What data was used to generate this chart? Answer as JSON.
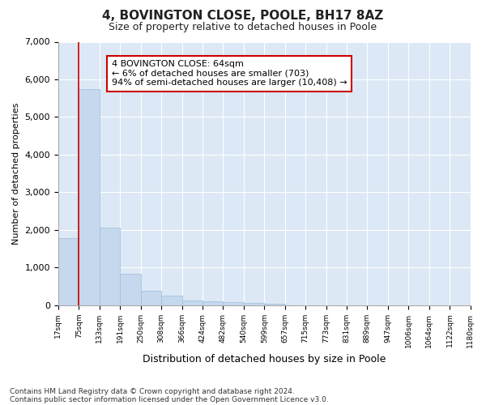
{
  "title": "4, BOVINGTON CLOSE, POOLE, BH17 8AZ",
  "subtitle": "Size of property relative to detached houses in Poole",
  "xlabel": "Distribution of detached houses by size in Poole",
  "ylabel": "Number of detached properties",
  "bar_color": "#c5d8ee",
  "bar_edge_color": "#9bbdd8",
  "plot_bg_color": "#dce8f5",
  "fig_bg_color": "#ffffff",
  "annotation_box_text": "4 BOVINGTON CLOSE: 64sqm\n← 6% of detached houses are smaller (703)\n94% of semi-detached houses are larger (10,408) →",
  "annotation_box_color": "#cc0000",
  "annotation_box_bg": "#ffffff",
  "vline_color": "#cc0000",
  "bin_edges": [
    17,
    75,
    133,
    191,
    250,
    308,
    366,
    424,
    482,
    540,
    599,
    657,
    715,
    773,
    831,
    889,
    947,
    1006,
    1064,
    1122,
    1180
  ],
  "bin_labels": [
    "17sqm",
    "75sqm",
    "133sqm",
    "191sqm",
    "250sqm",
    "308sqm",
    "366sqm",
    "424sqm",
    "482sqm",
    "540sqm",
    "599sqm",
    "657sqm",
    "715sqm",
    "773sqm",
    "831sqm",
    "889sqm",
    "947sqm",
    "1006sqm",
    "1064sqm",
    "1122sqm",
    "1180sqm"
  ],
  "bar_heights": [
    1780,
    5750,
    2060,
    840,
    380,
    250,
    130,
    105,
    75,
    55,
    45,
    0,
    0,
    0,
    0,
    0,
    0,
    0,
    0,
    0
  ],
  "ylim": [
    0,
    7000
  ],
  "yticks": [
    0,
    1000,
    2000,
    3000,
    4000,
    5000,
    6000,
    7000
  ],
  "footnote1": "Contains HM Land Registry data © Crown copyright and database right 2024.",
  "footnote2": "Contains public sector information licensed under the Open Government Licence v3.0."
}
